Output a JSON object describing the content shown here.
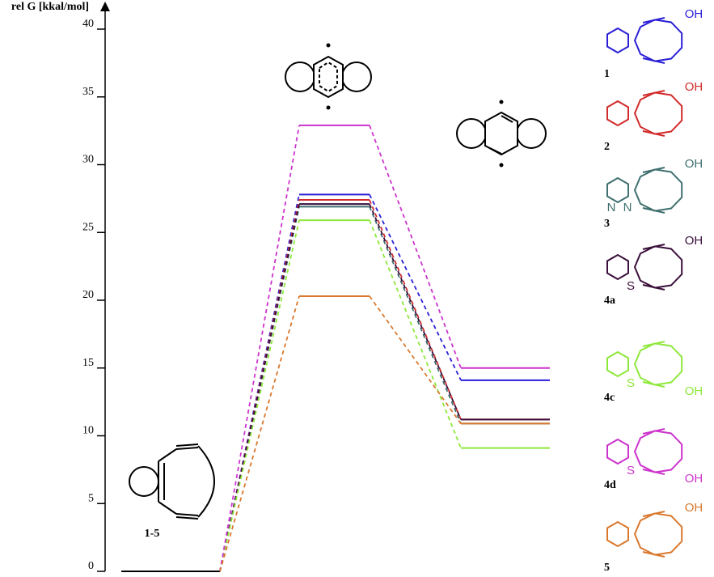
{
  "chart_data": {
    "type": "energy-level",
    "y_label": "rel G [kkal/mol]",
    "categories": [
      "1-5",
      null,
      null
    ],
    "ylim": [
      0,
      40
    ],
    "yticks": [
      0,
      5,
      10,
      15,
      20,
      25,
      30,
      35,
      40
    ],
    "series": [
      {
        "name": "1",
        "color": "#2a1fd6",
        "values": [
          0,
          27.8,
          14.1
        ],
        "atoms": [
          "OH"
        ]
      },
      {
        "name": "2",
        "color": "#d22b2b",
        "values": [
          0,
          27.4,
          11.2
        ],
        "atoms": [
          "OH"
        ]
      },
      {
        "name": "3",
        "color": "#3f6f6f",
        "values": [
          0,
          26.9,
          10.9
        ],
        "atoms": [
          "OH",
          "N",
          "N"
        ]
      },
      {
        "name": "4a",
        "color": "#3a0f3a",
        "values": [
          0,
          27.1,
          11.2
        ],
        "atoms": [
          "OH",
          "S"
        ]
      },
      {
        "name": "4c",
        "color": "#8ee83a",
        "values": [
          0,
          25.9,
          9.1
        ],
        "atoms": [
          "S",
          "OH"
        ]
      },
      {
        "name": "4d",
        "color": "#cc33cc",
        "values": [
          0,
          32.9,
          15.0
        ],
        "atoms": [
          "S",
          "OH"
        ]
      },
      {
        "name": "5",
        "color": "#d9782d",
        "values": [
          0,
          20.3,
          10.9
        ],
        "atoms": [
          "OH"
        ]
      }
    ]
  }
}
